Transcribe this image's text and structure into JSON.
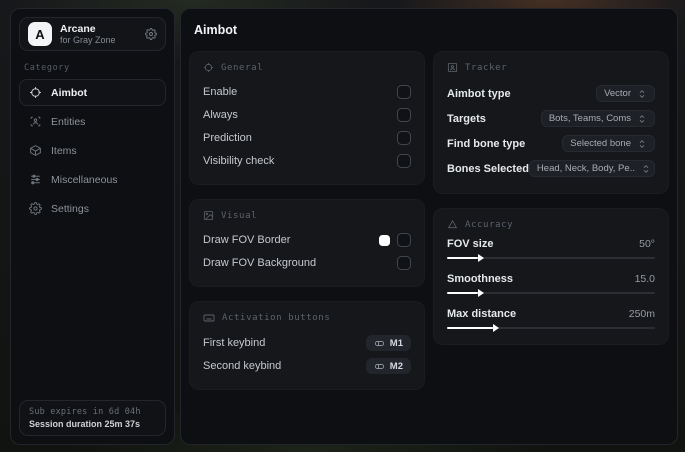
{
  "sidebar": {
    "brand": {
      "logo_letter": "A",
      "name": "Arcane",
      "subtitle": "for Gray Zone"
    },
    "category_label": "Category",
    "items": [
      {
        "label": "Aimbot",
        "icon": "crosshair-icon",
        "active": true
      },
      {
        "label": "Entities",
        "icon": "scan-person-icon",
        "active": false
      },
      {
        "label": "Items",
        "icon": "package-icon",
        "active": false
      },
      {
        "label": "Miscellaneous",
        "icon": "sliders-icon",
        "active": false
      },
      {
        "label": "Settings",
        "icon": "gear-icon",
        "active": false
      }
    ],
    "footer": {
      "line1": "Sub expires in 6d 04h",
      "line2": "Session duration 25m 37s"
    }
  },
  "main": {
    "title": "Aimbot",
    "general": {
      "title": "General",
      "rows": [
        {
          "label": "Enable",
          "checked": false
        },
        {
          "label": "Always",
          "checked": false
        },
        {
          "label": "Prediction",
          "checked": false
        },
        {
          "label": "Visibility check",
          "checked": false
        }
      ]
    },
    "visual": {
      "title": "Visual",
      "rows": [
        {
          "label": "Draw FOV Border",
          "swatch": "#ffffff",
          "checked": false
        },
        {
          "label": "Draw FOV Background",
          "checked": false
        }
      ]
    },
    "activation": {
      "title": "Activation buttons",
      "rows": [
        {
          "label": "First keybind",
          "key": "M1"
        },
        {
          "label": "Second keybind",
          "key": "M2"
        }
      ]
    },
    "tracker": {
      "title": "Tracker",
      "rows": [
        {
          "label": "Aimbot type",
          "value": "Vector"
        },
        {
          "label": "Targets",
          "value": "Bots, Teams, Coms"
        },
        {
          "label": "Find bone type",
          "value": "Selected bone"
        },
        {
          "label": "Bones Selected",
          "value": "Head, Neck, Body, Pe.."
        }
      ]
    },
    "accuracy": {
      "title": "Accuracy",
      "rows": [
        {
          "label": "FOV size",
          "value": "50°",
          "percent": 15
        },
        {
          "label": "Smoothness",
          "value": "15.0",
          "percent": 15
        },
        {
          "label": "Max distance",
          "value": "250m",
          "percent": 22
        }
      ]
    }
  },
  "colors": {
    "fov_border_swatch": "#ffffff",
    "slider_fill": "#ffffff"
  }
}
